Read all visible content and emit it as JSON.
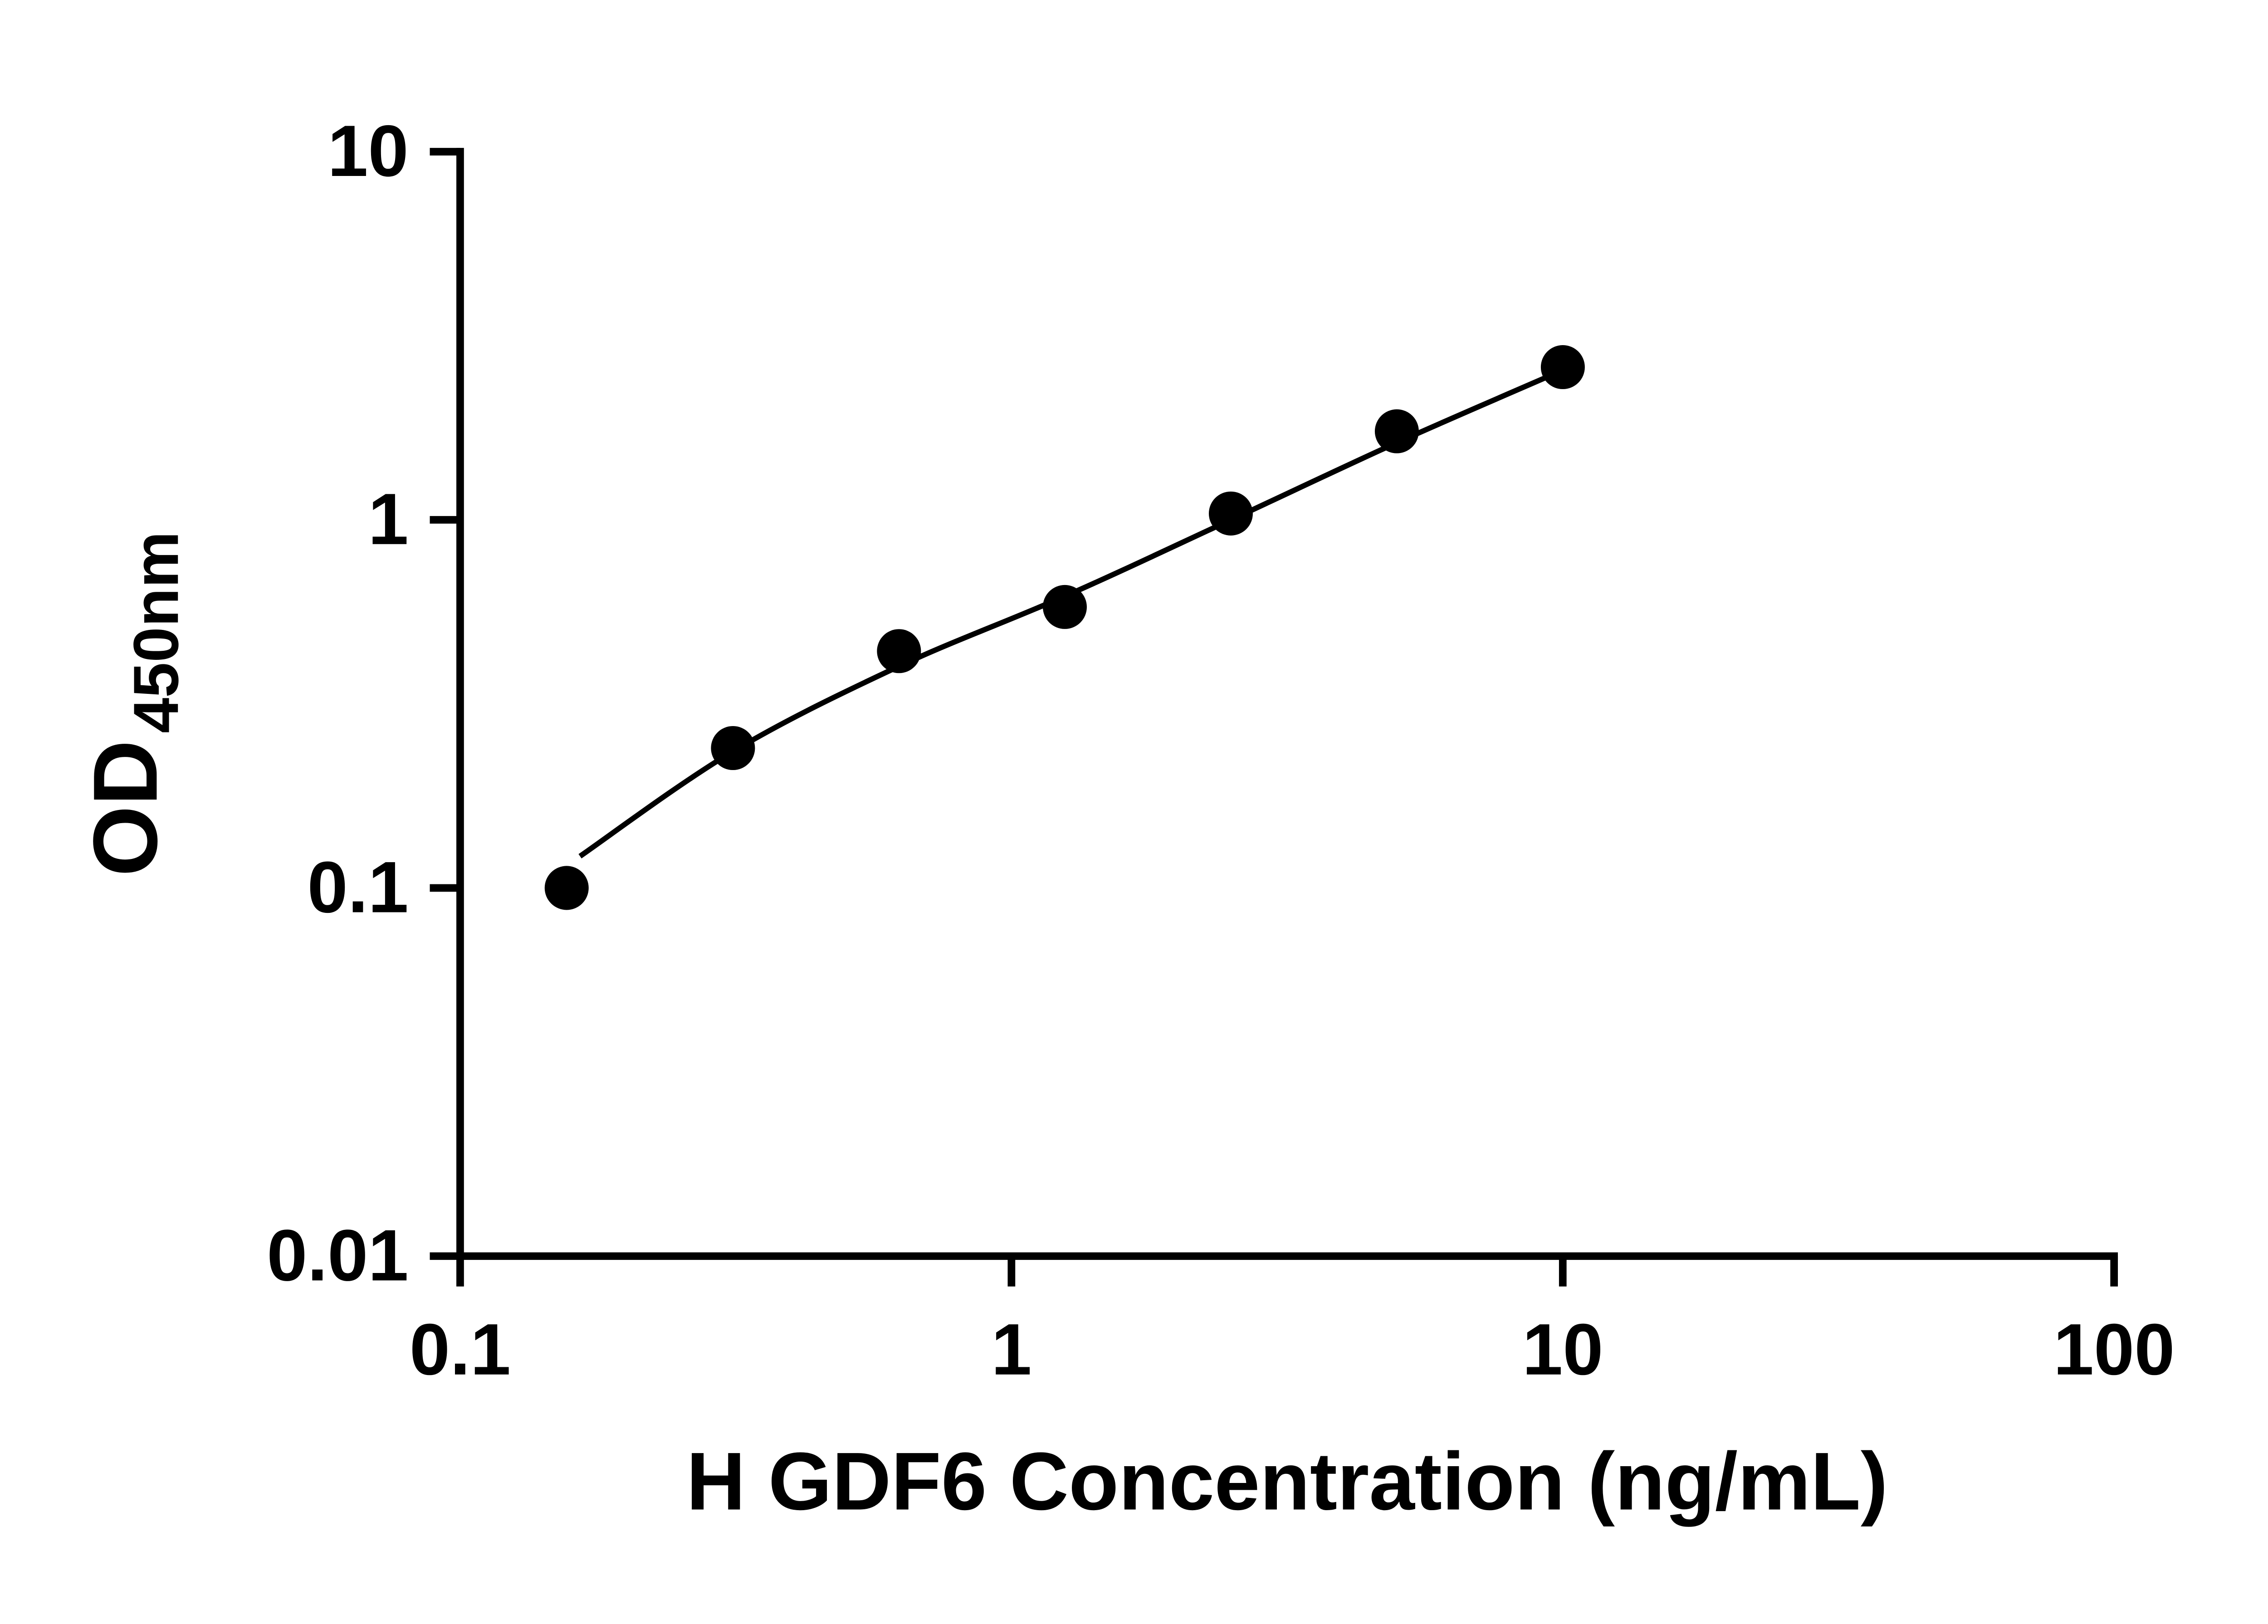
{
  "chart_data": {
    "type": "scatter",
    "title": "",
    "xlabel": "H GDF6 Concentration (ng/mL)",
    "ylabel_main": "OD",
    "ylabel_sub": "450nm",
    "x_scale": "log",
    "y_scale": "log",
    "xlim": [
      0.1,
      100
    ],
    "ylim": [
      0.01,
      10
    ],
    "x_ticks": {
      "values": [
        0.1,
        1,
        10,
        100
      ],
      "labels": [
        "0.1",
        "1",
        "10",
        "100"
      ]
    },
    "y_ticks": {
      "values": [
        0.01,
        0.1,
        1,
        10
      ],
      "labels": [
        "0.01",
        "0.1",
        "1",
        "10"
      ]
    },
    "grid": false,
    "legend": null,
    "marker_color": "#000000",
    "line_color": "#000000",
    "axis_color": "#000000",
    "points": {
      "x": [
        0.156,
        0.3125,
        0.625,
        1.25,
        2.5,
        5,
        10
      ],
      "y": [
        0.1,
        0.24,
        0.44,
        0.58,
        1.04,
        1.74,
        2.6
      ]
    },
    "trend_line": {
      "x": [
        0.165,
        0.3125,
        0.625,
        1.25,
        2.5,
        5,
        10
      ],
      "y": [
        0.122,
        0.235,
        0.4,
        0.62,
        1.0,
        1.62,
        2.55
      ]
    }
  }
}
